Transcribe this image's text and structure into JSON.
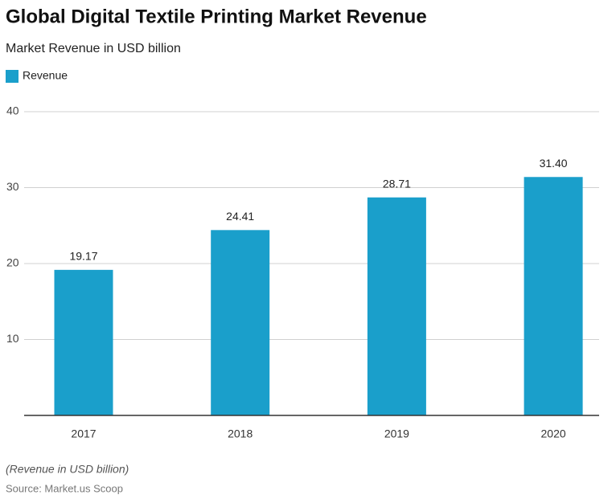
{
  "chart_data": {
    "type": "bar",
    "title": "Global Digital Textile Printing Market Revenue",
    "subtitle": "Market Revenue in USD billion",
    "categories": [
      "2017",
      "2018",
      "2019",
      "2020"
    ],
    "series": [
      {
        "name": "Revenue",
        "color": "#1a9fcb",
        "values": [
          19.17,
          24.41,
          28.71,
          31.4
        ],
        "value_labels": [
          "19.17",
          "24.41",
          "28.71",
          "31.40"
        ]
      }
    ],
    "ylim": [
      0,
      40
    ],
    "yticks": [
      10,
      20,
      30,
      40
    ],
    "grid": true,
    "note": "(Revenue in USD billion)",
    "source": "Source: Market.us Scoop"
  }
}
